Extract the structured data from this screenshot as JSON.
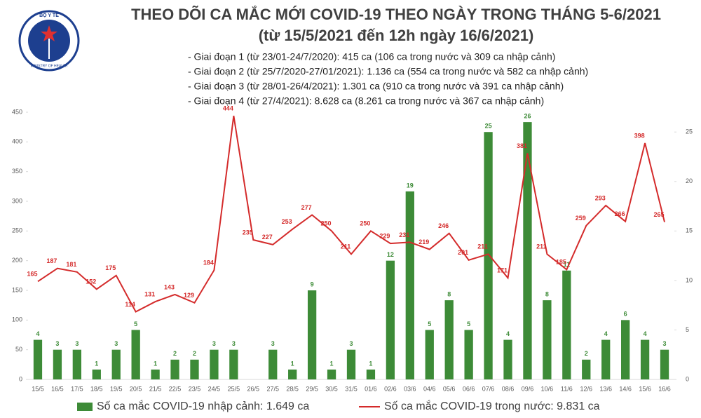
{
  "logo": {
    "top": "BỘ Y TẾ",
    "bottom": "MINISTRY OF HEALTH"
  },
  "chart_data": {
    "type": "bar-line",
    "title": "THEO DÕI CA MẮC MỚI COVID-19 THEO NGÀY TRONG THÁNG 5-6/2021",
    "subtitle": "(từ 15/5/2021 đến 12h ngày 16/6/2021)",
    "annotations": [
      "- Giai đoạn 1 (từ 23/01-24/7/2020): 415 ca (106 ca trong nước và 309 ca nhập cảnh)",
      "- Giai đoạn 2 (từ 25/7/2020-27/01/2021): 1.136 ca (554 ca trong nước và 582 ca nhập cảnh)",
      "- Giai đoạn 3 (từ 28/01-26/4/2021): 1.301 ca (910 ca trong nước và 391 ca nhập cảnh)",
      "- Giai đoạn 4 (từ 27/4/2021): 8.628 ca (8.261 ca trong nước và 367 ca nhập cảnh)"
    ],
    "categories": [
      "15/5",
      "16/5",
      "17/5",
      "18/5",
      "19/5",
      "20/5",
      "21/5",
      "22/5",
      "23/5",
      "24/5",
      "25/5",
      "26/5",
      "27/5",
      "28/5",
      "29/5",
      "30/5",
      "31/5",
      "01/6",
      "02/6",
      "03/6",
      "04/6",
      "05/6",
      "06/6",
      "07/6",
      "08/6",
      "09/6",
      "10/6",
      "11/6",
      "12/6",
      "13/6",
      "14/6",
      "15/6",
      "16/6"
    ],
    "series": [
      {
        "name": "Số ca mắc COVID-19 nhập cảnh: 1.649 ca",
        "type": "bar",
        "axis": "y2",
        "color": "#3d8b37",
        "values": [
          4,
          3,
          3,
          1,
          3,
          5,
          1,
          2,
          2,
          3,
          3,
          null,
          3,
          1,
          9,
          1,
          3,
          1,
          12,
          19,
          5,
          8,
          5,
          25,
          4,
          26,
          8,
          11,
          2,
          4,
          6,
          4,
          3
        ]
      },
      {
        "name": "Số ca mắc COVID-19 trong nước: 9.831 ca",
        "type": "line",
        "color": "#d42b2b",
        "values": [
          165,
          187,
          181,
          152,
          175,
          114,
          131,
          143,
          129,
          184,
          444,
          235,
          227,
          253,
          277,
          250,
          211,
          250,
          229,
          231,
          219,
          246,
          201,
          211,
          171,
          381,
          211,
          185,
          259,
          293,
          266,
          398,
          265
        ]
      }
    ],
    "ylim": [
      0,
      450
    ],
    "yticks": [
      0,
      50,
      100,
      150,
      200,
      250,
      300,
      350,
      400,
      450
    ],
    "y2lim": [
      0,
      27
    ],
    "y2ticks": [
      0,
      5,
      10,
      15,
      20,
      25
    ]
  }
}
